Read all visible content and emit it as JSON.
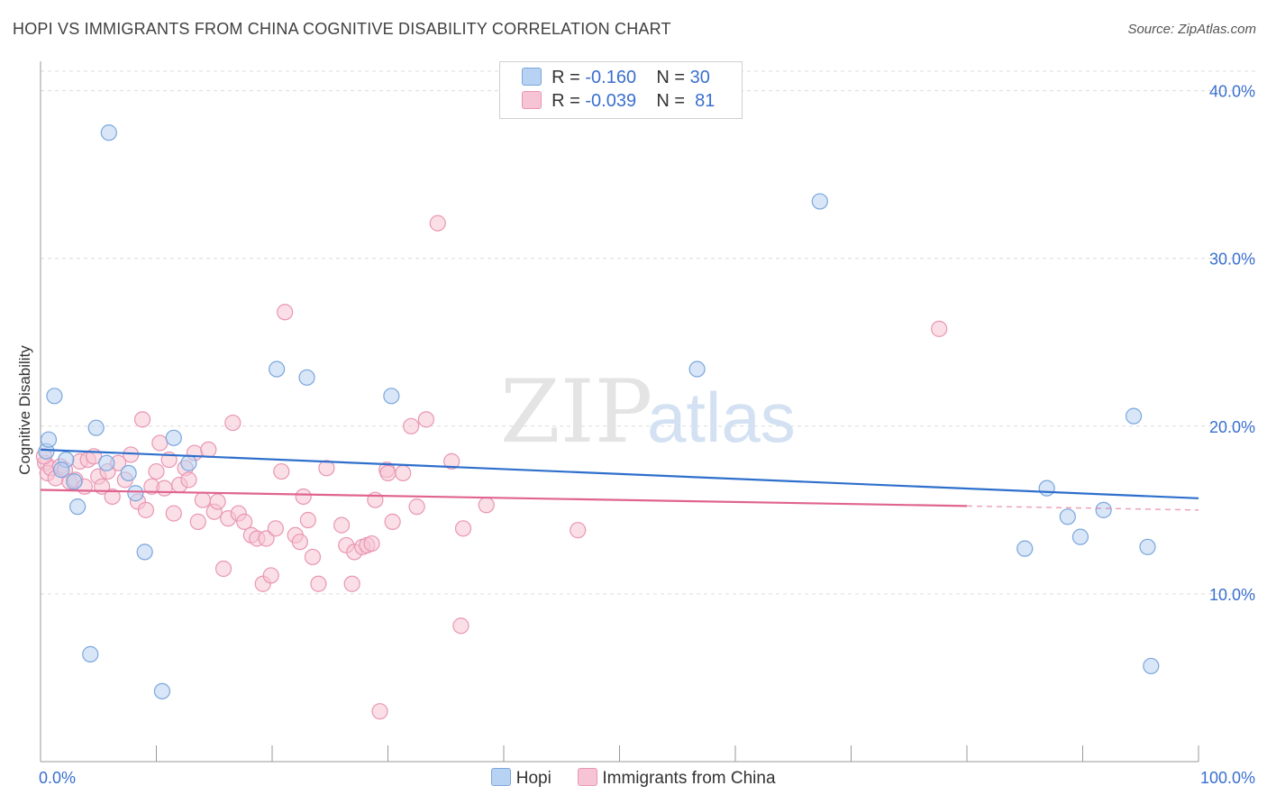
{
  "title": "HOPI VS IMMIGRANTS FROM CHINA COGNITIVE DISABILITY CORRELATION CHART",
  "source": "Source: ZipAtlas.com",
  "legend_top": {
    "hopi": {
      "r_label": "R =",
      "r_value": "-0.160",
      "n_label": "N =",
      "n_value": "30"
    },
    "china": {
      "r_label": "R =",
      "r_value": "-0.039",
      "n_label": "N =",
      "n_value": "81"
    }
  },
  "legend_bottom": {
    "hopi": "Hopi",
    "china": "Immigrants from China"
  },
  "colors": {
    "hopi_fill": "#b8d2f3",
    "hopi_stroke": "#7aa6dc",
    "hopi_line": "#2e6fcc",
    "china_fill": "#f6c4d4",
    "china_stroke": "#e996b3",
    "china_line": "#e0648f",
    "axis_label": "#3a6fd0"
  },
  "watermark": {
    "zip": "ZIP",
    "atlas": "atlas"
  },
  "chart_data": {
    "type": "scatter",
    "title": "HOPI VS IMMIGRANTS FROM CHINA COGNITIVE DISABILITY CORRELATION CHART",
    "xlabel": "",
    "ylabel": "Cognitive Disability",
    "xlim": [
      0,
      100
    ],
    "ylim": [
      0,
      41
    ],
    "x_tick_labels": [
      "0.0%",
      "100.0%"
    ],
    "y_ticks": [
      10,
      20,
      30,
      40
    ],
    "y_tick_labels": [
      "10.0%",
      "20.0%",
      "30.0%",
      "40.0%"
    ],
    "series": [
      {
        "name": "Hopi",
        "trend": {
          "x": [
            0,
            100
          ],
          "y": [
            18.6,
            15.7
          ],
          "dashed_from": null
        },
        "points": [
          [
            0.5,
            18.5
          ],
          [
            0.7,
            19.2
          ],
          [
            1.2,
            21.8
          ],
          [
            2.2,
            18.0
          ],
          [
            2.9,
            16.7
          ],
          [
            3.2,
            15.2
          ],
          [
            4.3,
            6.4
          ],
          [
            4.8,
            19.9
          ],
          [
            5.7,
            17.8
          ],
          [
            5.9,
            37.5
          ],
          [
            7.6,
            17.2
          ],
          [
            8.2,
            16.0
          ],
          [
            9.0,
            12.5
          ],
          [
            10.5,
            4.2
          ],
          [
            11.5,
            19.3
          ],
          [
            12.8,
            17.8
          ],
          [
            20.4,
            23.4
          ],
          [
            23.0,
            22.9
          ],
          [
            30.3,
            21.8
          ],
          [
            56.7,
            23.4
          ],
          [
            67.3,
            33.4
          ],
          [
            85.0,
            12.7
          ],
          [
            86.9,
            16.3
          ],
          [
            88.7,
            14.6
          ],
          [
            89.8,
            13.4
          ],
          [
            91.8,
            15.0
          ],
          [
            94.4,
            20.6
          ],
          [
            95.6,
            12.8
          ],
          [
            95.9,
            5.7
          ],
          [
            1.8,
            17.4
          ]
        ]
      },
      {
        "name": "Immigrants from China",
        "trend": {
          "x": [
            0,
            100
          ],
          "y": [
            16.2,
            15.0
          ],
          "dashed_from": 80
        },
        "points": [
          [
            0.4,
            17.8
          ],
          [
            0.6,
            17.2
          ],
          [
            0.9,
            17.5
          ],
          [
            1.3,
            16.9
          ],
          [
            1.7,
            17.6
          ],
          [
            2.1,
            17.4
          ],
          [
            2.5,
            16.7
          ],
          [
            3.0,
            16.8
          ],
          [
            3.4,
            17.9
          ],
          [
            3.8,
            16.4
          ],
          [
            4.1,
            18.0
          ],
          [
            4.6,
            18.2
          ],
          [
            5.0,
            17.0
          ],
          [
            5.3,
            16.4
          ],
          [
            5.8,
            17.3
          ],
          [
            6.2,
            15.8
          ],
          [
            6.7,
            17.8
          ],
          [
            7.3,
            16.8
          ],
          [
            7.8,
            18.3
          ],
          [
            8.4,
            15.5
          ],
          [
            8.8,
            20.4
          ],
          [
            9.1,
            15.0
          ],
          [
            9.6,
            16.4
          ],
          [
            10.0,
            17.3
          ],
          [
            10.3,
            19.0
          ],
          [
            10.7,
            16.3
          ],
          [
            11.1,
            18.0
          ],
          [
            11.5,
            14.8
          ],
          [
            12.0,
            16.5
          ],
          [
            12.5,
            17.5
          ],
          [
            12.8,
            16.8
          ],
          [
            13.3,
            18.4
          ],
          [
            13.6,
            14.3
          ],
          [
            14.0,
            15.6
          ],
          [
            14.5,
            18.6
          ],
          [
            15.0,
            14.9
          ],
          [
            15.3,
            15.5
          ],
          [
            15.8,
            11.5
          ],
          [
            16.2,
            14.5
          ],
          [
            16.6,
            20.2
          ],
          [
            17.1,
            14.8
          ],
          [
            17.6,
            14.3
          ],
          [
            18.2,
            13.5
          ],
          [
            18.7,
            13.3
          ],
          [
            19.2,
            10.6
          ],
          [
            19.5,
            13.3
          ],
          [
            19.9,
            11.1
          ],
          [
            20.3,
            13.9
          ],
          [
            20.8,
            17.3
          ],
          [
            21.1,
            26.8
          ],
          [
            22.0,
            13.5
          ],
          [
            22.4,
            13.1
          ],
          [
            22.7,
            15.8
          ],
          [
            23.1,
            14.4
          ],
          [
            23.5,
            12.2
          ],
          [
            24.0,
            10.6
          ],
          [
            24.7,
            17.5
          ],
          [
            26.0,
            14.1
          ],
          [
            26.4,
            12.9
          ],
          [
            26.9,
            10.6
          ],
          [
            27.1,
            12.5
          ],
          [
            27.8,
            12.8
          ],
          [
            28.2,
            12.9
          ],
          [
            28.6,
            13.0
          ],
          [
            28.9,
            15.6
          ],
          [
            29.9,
            17.4
          ],
          [
            30.4,
            14.3
          ],
          [
            31.3,
            17.2
          ],
          [
            32.0,
            20.0
          ],
          [
            32.5,
            15.2
          ],
          [
            33.3,
            20.4
          ],
          [
            34.3,
            32.1
          ],
          [
            35.5,
            17.9
          ],
          [
            36.3,
            8.1
          ],
          [
            36.5,
            13.9
          ],
          [
            38.5,
            15.3
          ],
          [
            30.0,
            17.2
          ],
          [
            29.3,
            3.0
          ],
          [
            46.4,
            13.8
          ],
          [
            77.6,
            25.8
          ],
          [
            0.3,
            18.2
          ]
        ]
      }
    ]
  }
}
